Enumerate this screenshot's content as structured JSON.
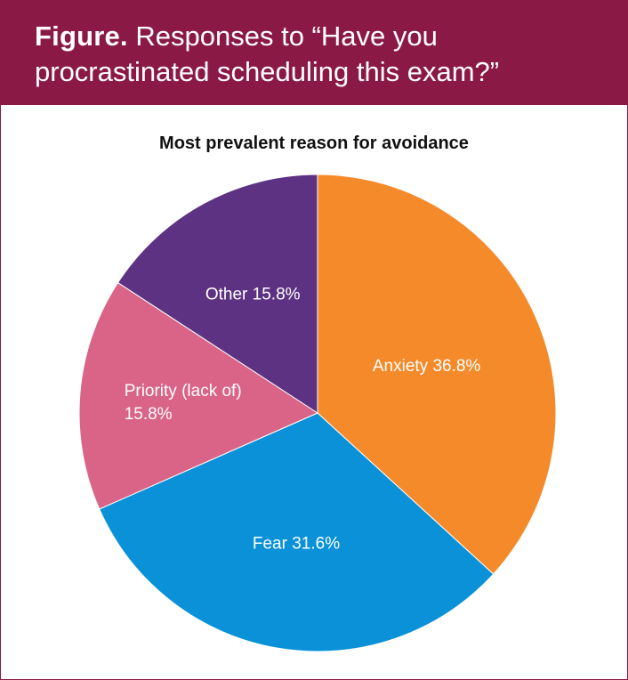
{
  "figure": {
    "label": "Figure.",
    "caption": "Responses to “Have you procrastinated scheduling this exam?”"
  },
  "colors": {
    "header_bg": "#8a1a45",
    "anxiety": "#f58a2a",
    "fear": "#0a91d8",
    "priority": "#d96488",
    "other": "#5e3282"
  },
  "chart_data": {
    "type": "pie",
    "title": "Most prevalent reason for avoidance",
    "slices": [
      {
        "label": "Anxiety",
        "value": 36.8,
        "display": "Anxiety 36.8%",
        "color": "#f58a2a"
      },
      {
        "label": "Fear",
        "value": 31.6,
        "display": "Fear 31.6%",
        "color": "#0a91d8"
      },
      {
        "label": "Priority (lack of)",
        "value": 15.8,
        "display": "Priority (lack of) 15.8%",
        "color": "#d96488"
      },
      {
        "label": "Other",
        "value": 15.8,
        "display": "Other 15.8%",
        "color": "#5e3282"
      }
    ]
  }
}
